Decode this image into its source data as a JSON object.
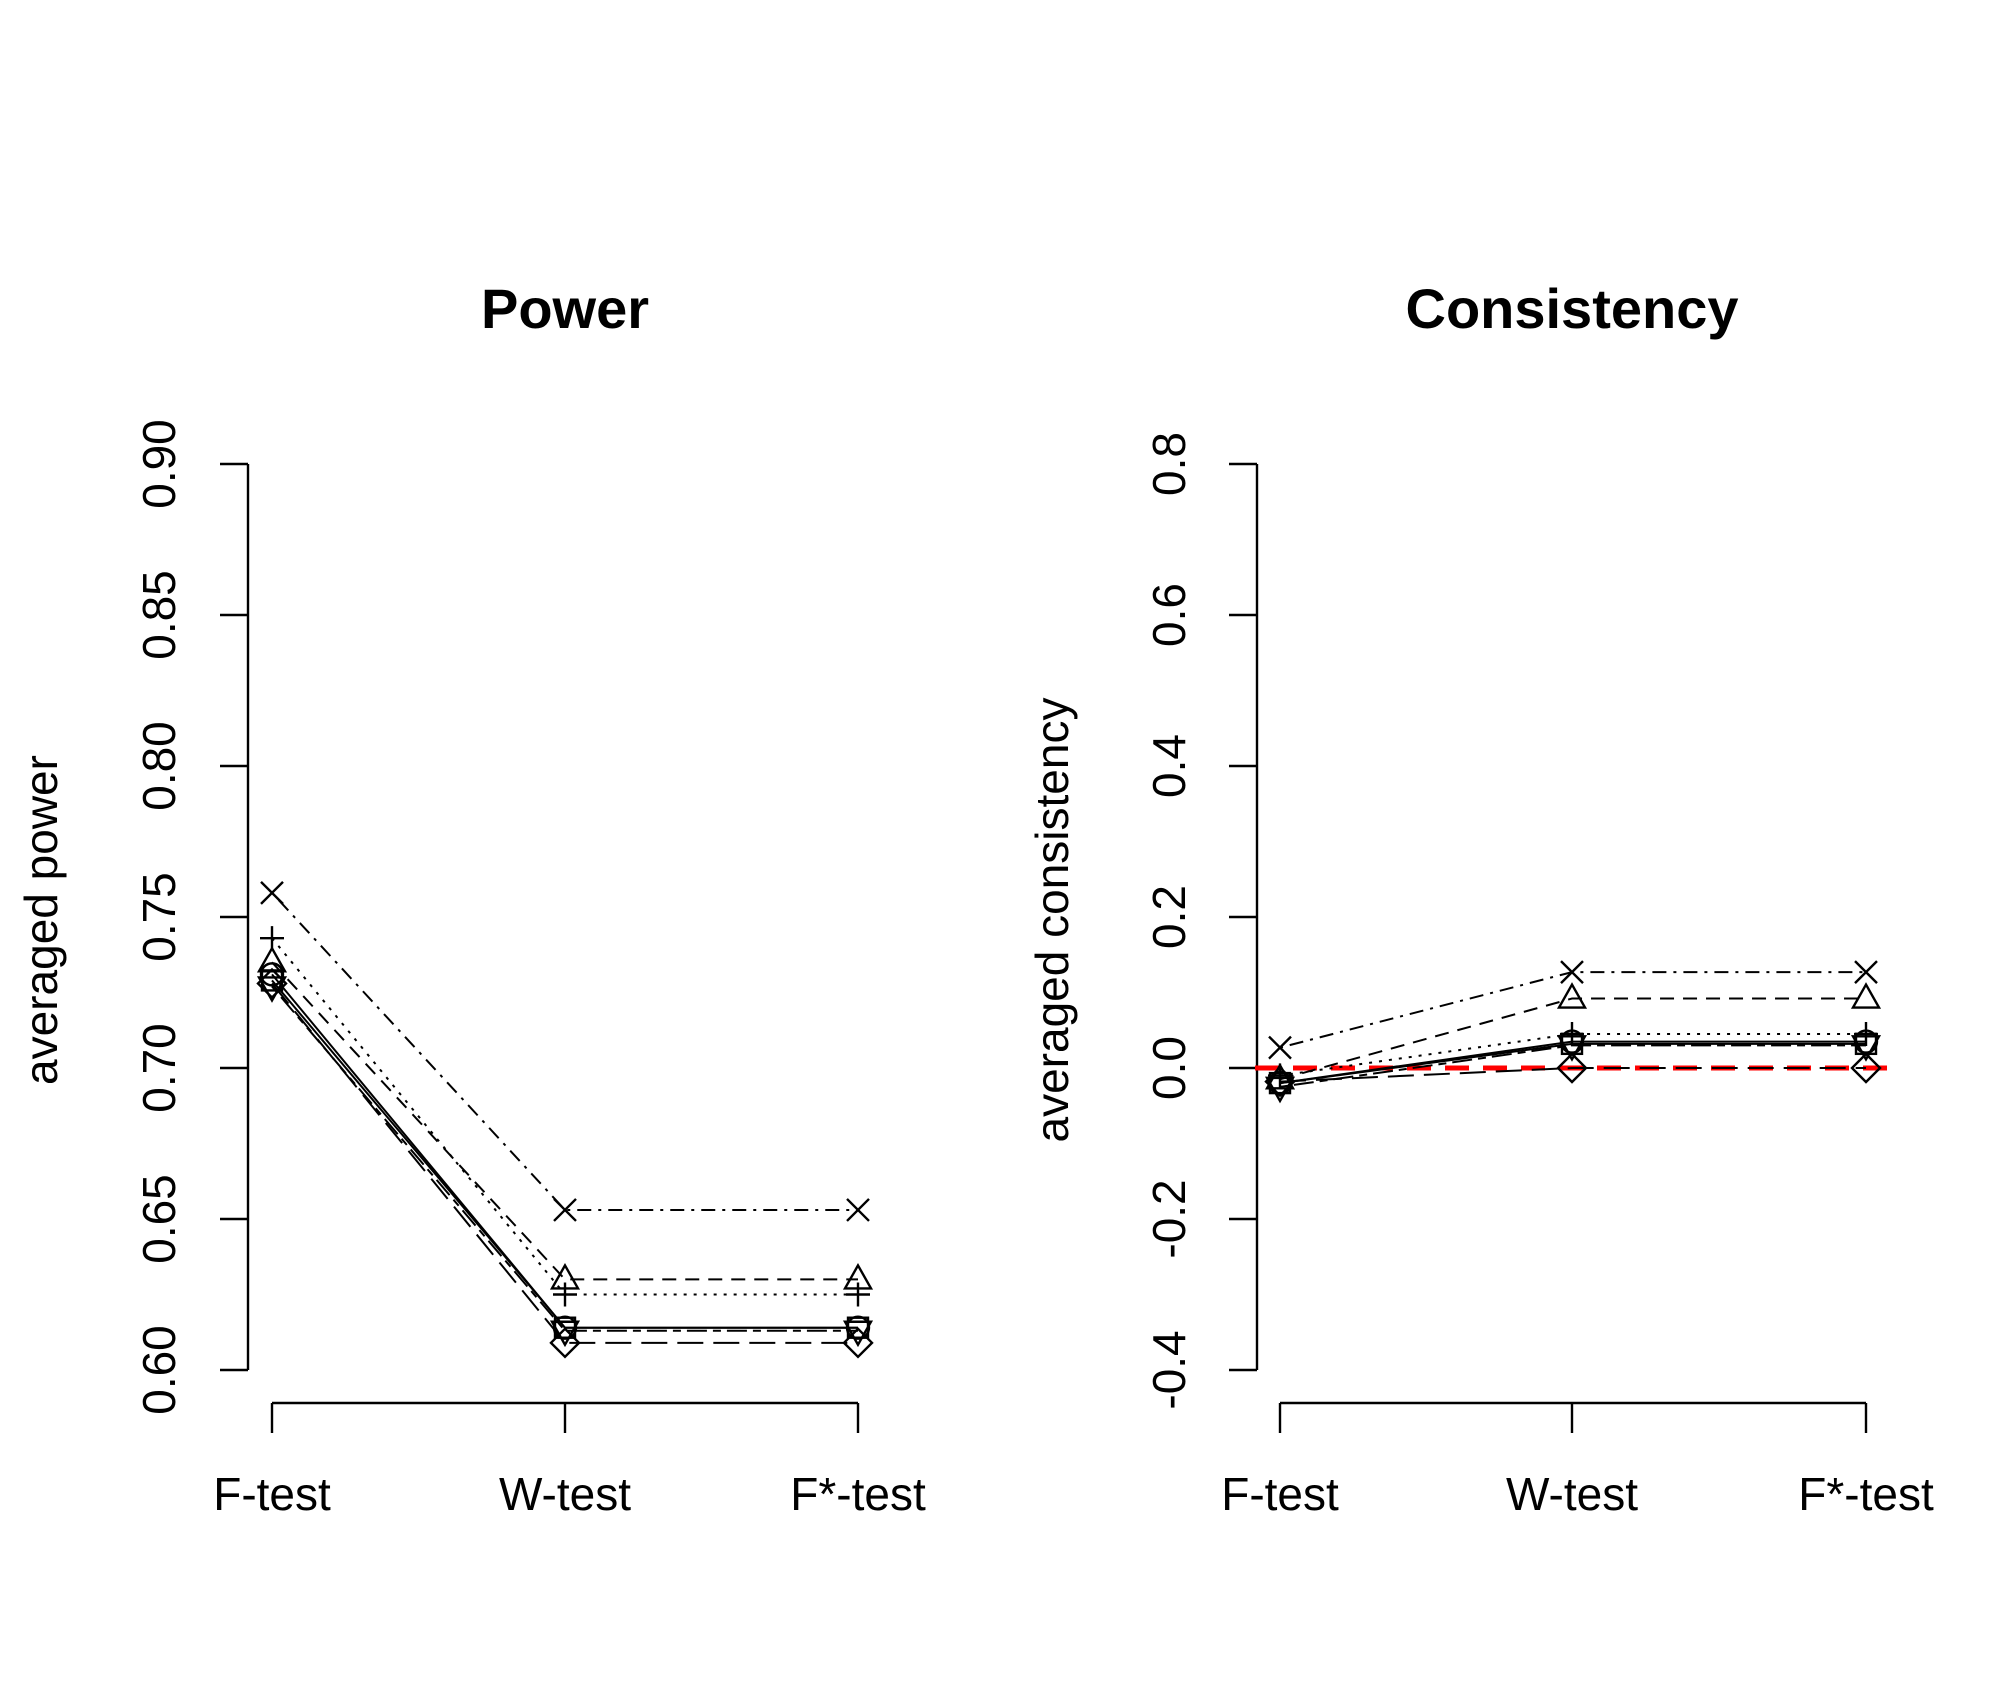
{
  "chart_data": [
    {
      "type": "line",
      "title": "Power",
      "ylabel": "averaged power",
      "xlabel": "",
      "categories": [
        "F-test",
        "W-test",
        "F*-test"
      ],
      "ylim": [
        0.6,
        0.9
      ],
      "yticks": [
        "0.60",
        "0.65",
        "0.70",
        "0.75",
        "0.80",
        "0.85",
        "0.90"
      ],
      "grid": false,
      "series": [
        {
          "values": [
            0.729,
            0.614,
            0.614
          ],
          "marker": "square",
          "lty": "solid"
        },
        {
          "values": [
            0.731,
            0.614,
            0.614
          ],
          "marker": "circle",
          "lty": "solid"
        },
        {
          "values": [
            0.735,
            0.63,
            0.63
          ],
          "marker": "triangle-up",
          "lty": "dashed"
        },
        {
          "values": [
            0.743,
            0.625,
            0.625
          ],
          "marker": "plus",
          "lty": "dotted"
        },
        {
          "values": [
            0.758,
            0.653,
            0.653
          ],
          "marker": "x",
          "lty": "dotdash"
        },
        {
          "values": [
            0.728,
            0.609,
            0.609
          ],
          "marker": "diamond",
          "lty": "longdash"
        },
        {
          "values": [
            0.727,
            0.613,
            0.613
          ],
          "marker": "triangle-down",
          "lty": "twodash"
        }
      ]
    },
    {
      "type": "line",
      "title": "Consistency",
      "ylabel": "averaged consistency",
      "xlabel": "",
      "categories": [
        "F-test",
        "W-test",
        "F*-test"
      ],
      "ylim": [
        -0.4,
        0.8
      ],
      "yticks": [
        "-0.4",
        "-0.2",
        "0.0",
        "0.2",
        "0.4",
        "0.6",
        "0.8"
      ],
      "grid": false,
      "reference_line": {
        "y": 0.0,
        "color": "#ff0000",
        "lty": "dashed"
      },
      "series": [
        {
          "values": [
            -0.02,
            0.032,
            0.032
          ],
          "marker": "square",
          "lty": "solid"
        },
        {
          "values": [
            -0.02,
            0.035,
            0.035
          ],
          "marker": "circle",
          "lty": "solid"
        },
        {
          "values": [
            -0.015,
            0.092,
            0.092
          ],
          "marker": "triangle-up",
          "lty": "dashed"
        },
        {
          "values": [
            -0.01,
            0.045,
            0.045
          ],
          "marker": "plus",
          "lty": "dotted"
        },
        {
          "values": [
            0.027,
            0.127,
            0.127
          ],
          "marker": "x",
          "lty": "dotdash"
        },
        {
          "values": [
            -0.018,
            0.0,
            0.0
          ],
          "marker": "diamond",
          "lty": "longdash"
        },
        {
          "values": [
            -0.025,
            0.03,
            0.03
          ],
          "marker": "triangle-down",
          "lty": "twodash"
        }
      ]
    }
  ]
}
